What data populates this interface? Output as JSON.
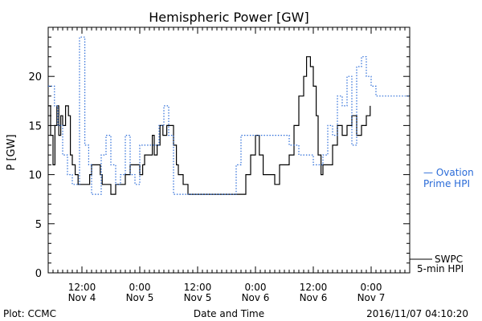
{
  "chart_data": {
    "type": "line",
    "title": "Hemispheric Power [GW]",
    "ylabel": "P [GW]",
    "xlabel": "Date and Time",
    "ylim": [
      0,
      25
    ],
    "xlim_hours": [
      0,
      75
    ],
    "y_ticks": [
      0,
      5,
      10,
      15,
      20
    ],
    "x_ticks": [
      {
        "hour": 7,
        "line1": "12:00",
        "line2": "Nov 4"
      },
      {
        "hour": 19,
        "line1": "0:00",
        "line2": "Nov 5"
      },
      {
        "hour": 31,
        "line1": "12:00",
        "line2": "Nov 5"
      },
      {
        "hour": 43,
        "line1": "0:00",
        "line2": "Nov 6"
      },
      {
        "hour": 55,
        "line1": "12:00",
        "line2": "Nov 6"
      },
      {
        "hour": 67,
        "line1": "0:00",
        "line2": "Nov 7"
      }
    ],
    "series": [
      {
        "name": "SWPC 5-min HPI",
        "color": "#000000",
        "style": "solid",
        "points": [
          [
            0.0,
            17
          ],
          [
            0.5,
            14
          ],
          [
            1.0,
            11
          ],
          [
            1.4,
            15
          ],
          [
            1.8,
            17
          ],
          [
            2.2,
            14
          ],
          [
            2.6,
            16
          ],
          [
            3.0,
            15
          ],
          [
            3.6,
            17
          ],
          [
            4.2,
            16
          ],
          [
            4.6,
            12
          ],
          [
            5.0,
            11
          ],
          [
            5.6,
            10
          ],
          [
            6.2,
            9
          ],
          [
            7.0,
            9
          ],
          [
            8.0,
            9
          ],
          [
            8.6,
            10
          ],
          [
            9.0,
            11
          ],
          [
            10.0,
            11
          ],
          [
            10.8,
            10
          ],
          [
            11.2,
            9
          ],
          [
            12.0,
            9
          ],
          [
            13.0,
            8
          ],
          [
            14.0,
            9
          ],
          [
            15.0,
            9
          ],
          [
            16.0,
            10
          ],
          [
            17.0,
            11
          ],
          [
            18.0,
            11
          ],
          [
            19.0,
            10
          ],
          [
            19.6,
            11
          ],
          [
            20.0,
            12
          ],
          [
            21.0,
            12
          ],
          [
            21.6,
            14
          ],
          [
            22.0,
            12
          ],
          [
            22.6,
            13
          ],
          [
            23.2,
            15
          ],
          [
            23.8,
            14
          ],
          [
            24.6,
            15
          ],
          [
            25.2,
            15
          ],
          [
            26.0,
            13
          ],
          [
            26.6,
            11
          ],
          [
            27.0,
            10
          ],
          [
            28.0,
            9
          ],
          [
            29.0,
            8
          ],
          [
            30.0,
            8
          ],
          [
            32.0,
            8
          ],
          [
            34.0,
            8
          ],
          [
            35.0,
            8
          ],
          [
            36.0,
            8
          ],
          [
            37.0,
            8
          ],
          [
            38.0,
            8
          ],
          [
            39.0,
            8
          ],
          [
            40.0,
            8
          ],
          [
            41.0,
            10
          ],
          [
            42.0,
            12
          ],
          [
            43.0,
            14
          ],
          [
            43.8,
            12
          ],
          [
            44.6,
            10
          ],
          [
            45.0,
            10
          ],
          [
            46.0,
            10
          ],
          [
            47.0,
            9
          ],
          [
            48.0,
            11
          ],
          [
            49.0,
            11
          ],
          [
            50.0,
            12
          ],
          [
            51.0,
            15
          ],
          [
            52.0,
            18
          ],
          [
            53.0,
            20
          ],
          [
            53.6,
            22
          ],
          [
            54.4,
            21
          ],
          [
            55.0,
            19
          ],
          [
            55.6,
            16
          ],
          [
            56.0,
            12
          ],
          [
            56.6,
            10
          ],
          [
            57.0,
            11
          ],
          [
            58.0,
            11
          ],
          [
            59.0,
            13
          ],
          [
            60.0,
            15
          ],
          [
            61.0,
            14
          ],
          [
            62.0,
            15
          ],
          [
            63.0,
            16
          ],
          [
            64.0,
            14
          ],
          [
            65.0,
            15
          ],
          [
            66.0,
            16
          ],
          [
            66.8,
            17
          ]
        ]
      },
      {
        "name": "Ovation Prime HPI",
        "color": "#2a6bd8",
        "style": "dotted",
        "points": [
          [
            0.0,
            19
          ],
          [
            0.7,
            19
          ],
          [
            1.3,
            17
          ],
          [
            2.0,
            15
          ],
          [
            3.0,
            12
          ],
          [
            4.0,
            10
          ],
          [
            5.0,
            9
          ],
          [
            6.0,
            9
          ],
          [
            6.5,
            24
          ],
          [
            7.0,
            24
          ],
          [
            7.6,
            13
          ],
          [
            8.4,
            11
          ],
          [
            9.0,
            8
          ],
          [
            10.0,
            8
          ],
          [
            11.0,
            12
          ],
          [
            12.0,
            14
          ],
          [
            13.0,
            11
          ],
          [
            14.0,
            9
          ],
          [
            15.0,
            10
          ],
          [
            16.0,
            14
          ],
          [
            17.0,
            10
          ],
          [
            18.0,
            9
          ],
          [
            19.0,
            13
          ],
          [
            20.0,
            13
          ],
          [
            22.0,
            13
          ],
          [
            23.0,
            15
          ],
          [
            24.0,
            17
          ],
          [
            25.0,
            14
          ],
          [
            26.0,
            8
          ],
          [
            28.0,
            8
          ],
          [
            30.0,
            8
          ],
          [
            32.0,
            8
          ],
          [
            34.0,
            8
          ],
          [
            36.0,
            8
          ],
          [
            38.0,
            8
          ],
          [
            39.0,
            11
          ],
          [
            40.0,
            14
          ],
          [
            42.0,
            14
          ],
          [
            43.0,
            14
          ],
          [
            44.0,
            14
          ],
          [
            46.0,
            14
          ],
          [
            50.0,
            13
          ],
          [
            52.0,
            12
          ],
          [
            54.0,
            12
          ],
          [
            55.0,
            11
          ],
          [
            56.0,
            11
          ],
          [
            57.0,
            12
          ],
          [
            58.0,
            15
          ],
          [
            59.0,
            14
          ],
          [
            60.0,
            18
          ],
          [
            61.0,
            17
          ],
          [
            62.0,
            20
          ],
          [
            63.0,
            13
          ],
          [
            64.0,
            21
          ],
          [
            65.0,
            22
          ],
          [
            66.0,
            20
          ],
          [
            67.0,
            19
          ],
          [
            68.0,
            18
          ],
          [
            70.0,
            18
          ],
          [
            75.0,
            18
          ]
        ]
      }
    ],
    "legend": [
      {
        "text_line1": "— Ovation",
        "text_line2": "Prime HPI",
        "color": "#2a6bd8"
      },
      {
        "text_line1": "SWPC",
        "text_line2": "5-min HPI",
        "color": "#000000"
      }
    ],
    "footer": {
      "left": "Plot: CCMC",
      "center": "Date and Time",
      "right": "2016/11/07 04:10:20"
    }
  }
}
